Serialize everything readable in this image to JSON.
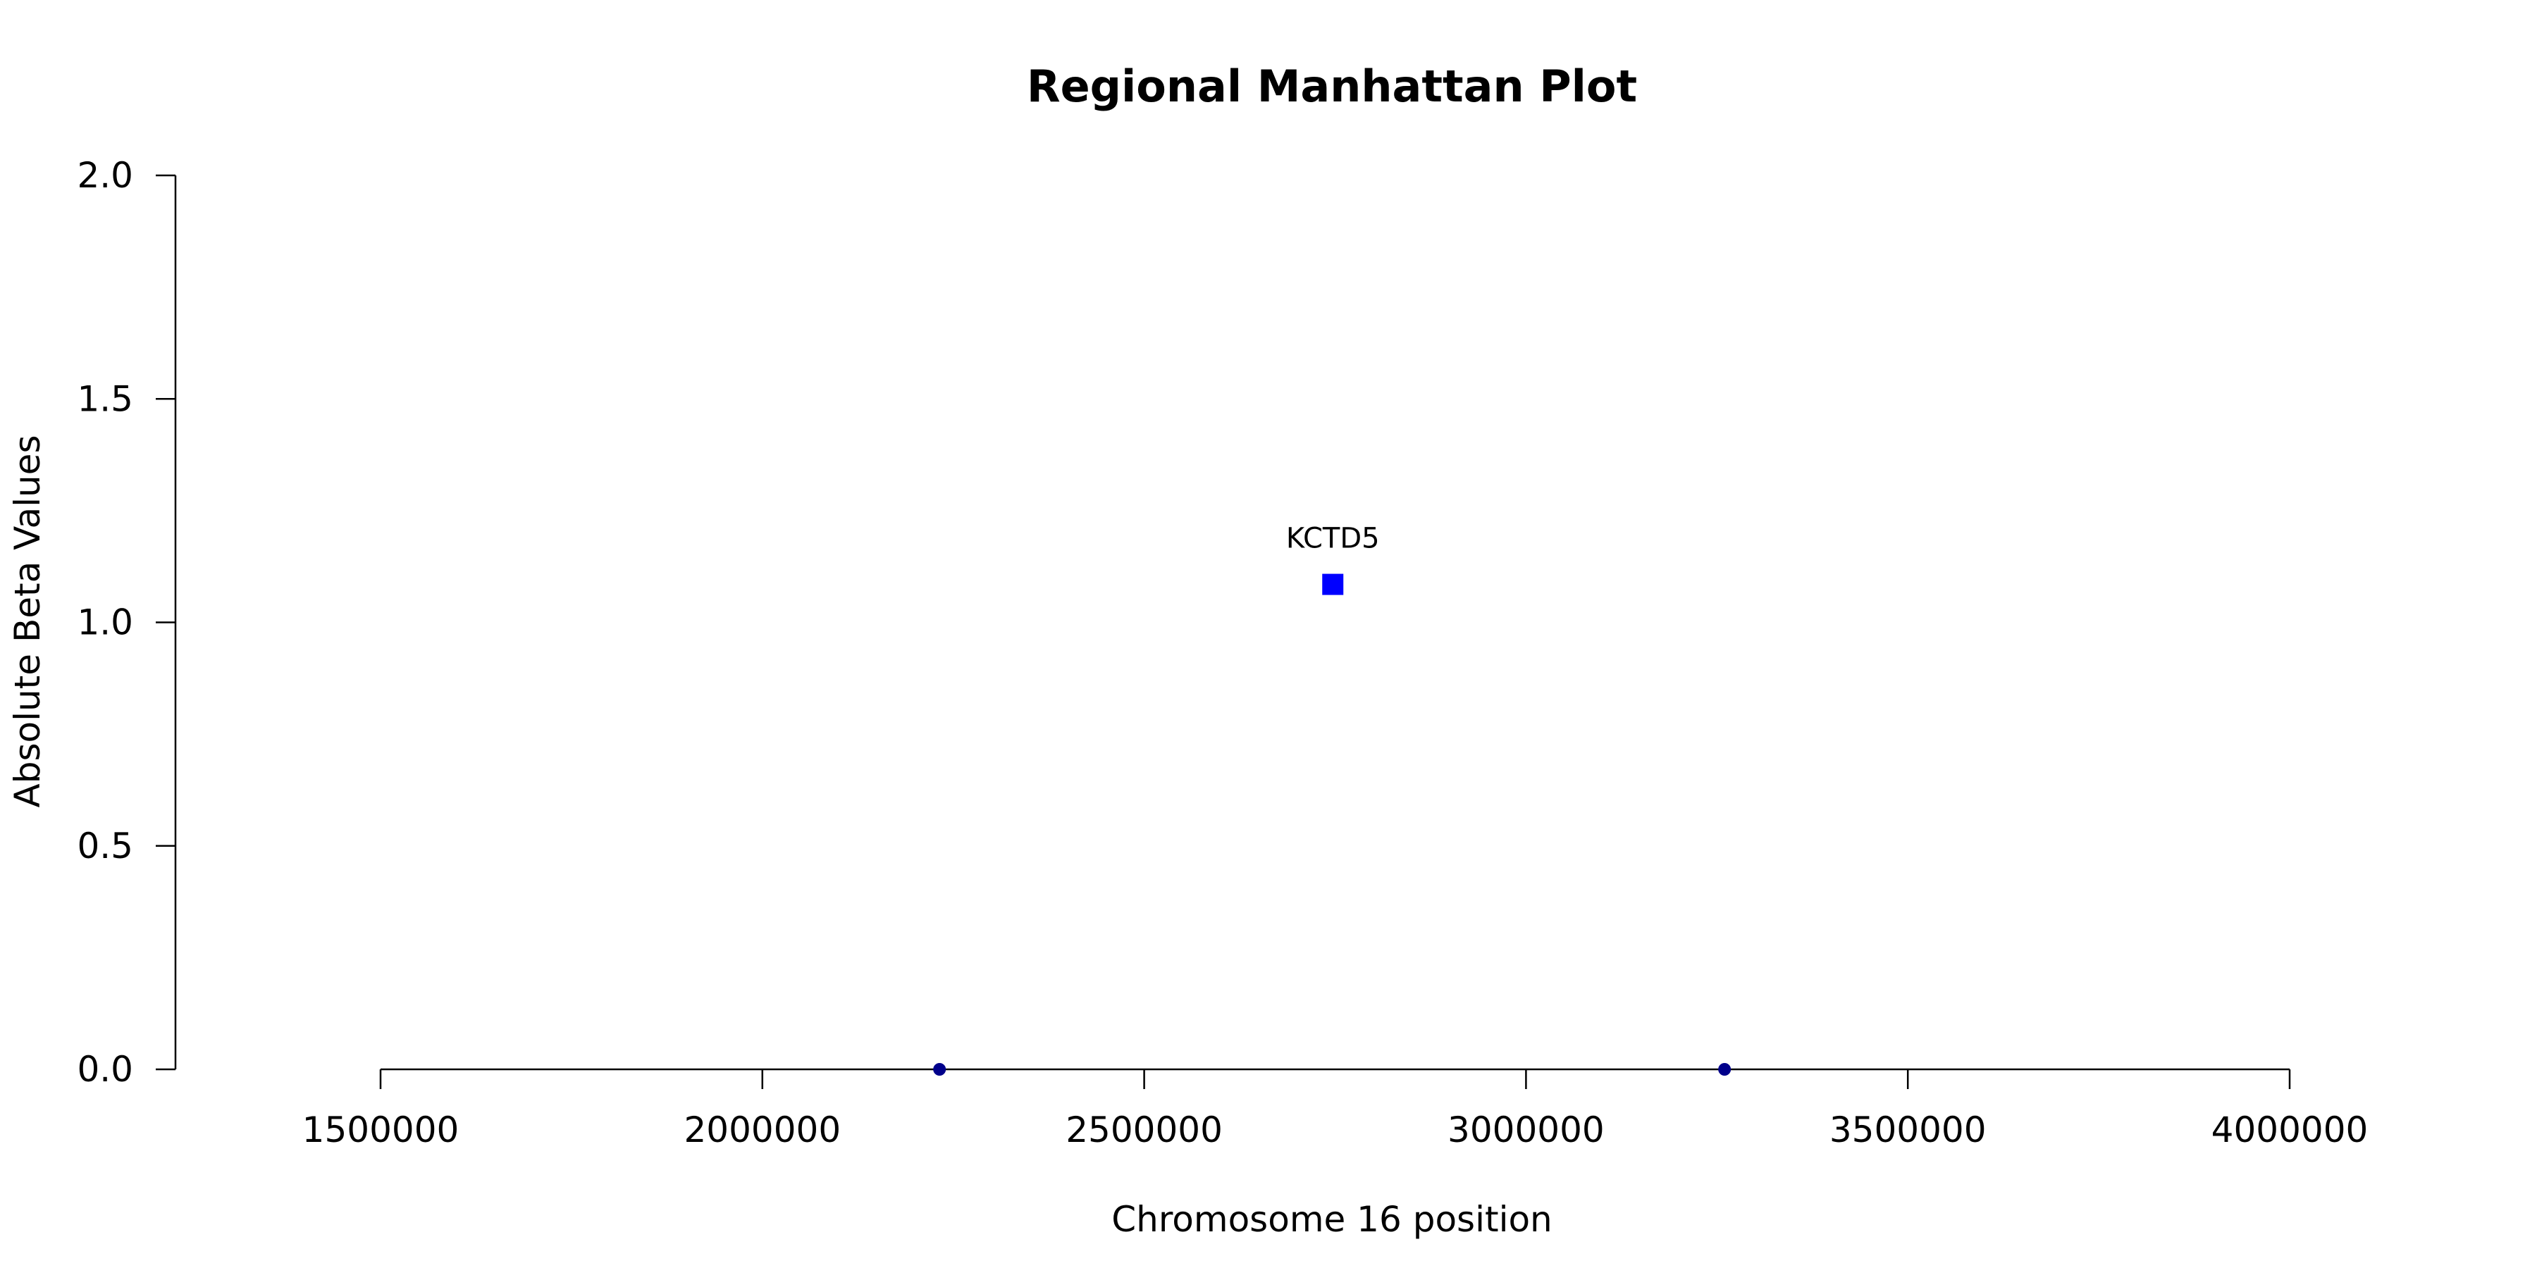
{
  "chart_data": {
    "type": "scatter",
    "title": "Regional Manhattan Plot",
    "xlabel": "Chromosome 16 position",
    "ylabel": "Absolute Beta Values",
    "xlim": [
      1500000,
      4000000
    ],
    "ylim": [
      0,
      2
    ],
    "x_ticks": [
      "1500000",
      "2000000",
      "2500000",
      "3000000",
      "3500000",
      "4000000"
    ],
    "y_ticks": [
      "0.0",
      "0.5",
      "1.0",
      "1.5",
      "2.0"
    ],
    "grid": false,
    "legend": "none",
    "points": [
      {
        "x": 2232000,
        "y": 0.0,
        "marker": "circle",
        "color": "#00008b",
        "label": ""
      },
      {
        "x": 2747000,
        "y": 1.085,
        "marker": "square",
        "color": "#0000ff",
        "label": "KCTD5"
      },
      {
        "x": 3260000,
        "y": 0.0,
        "marker": "circle",
        "color": "#00008b",
        "label": ""
      }
    ]
  }
}
